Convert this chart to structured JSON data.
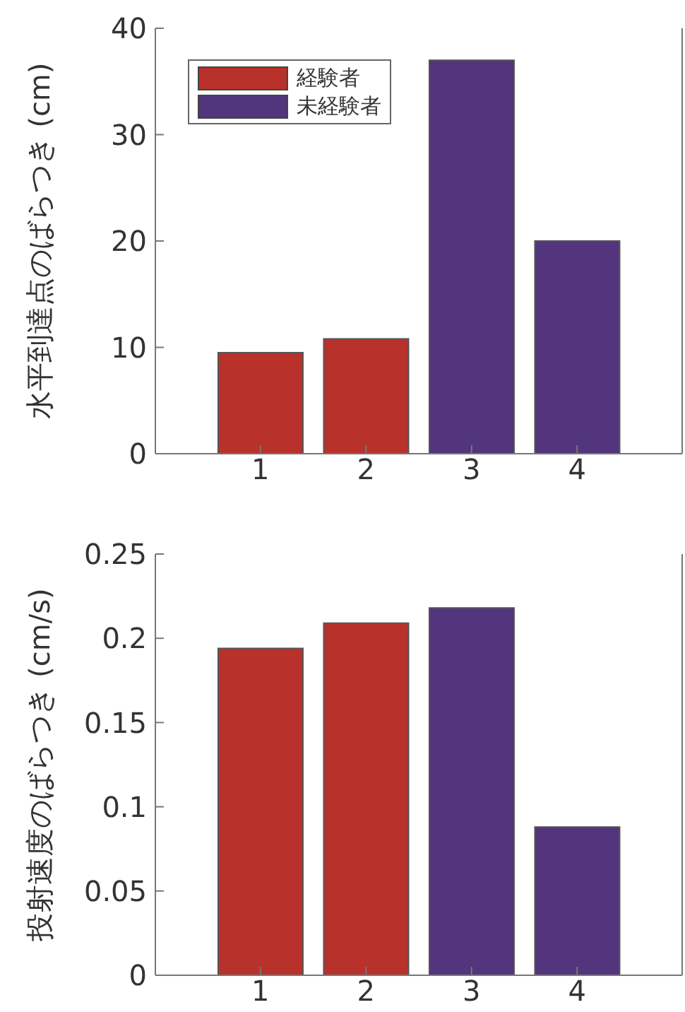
{
  "chart_data": [
    {
      "type": "bar",
      "ylabel": "水平到達点のばらつき (cm)",
      "categories": [
        "1",
        "2",
        "3",
        "4"
      ],
      "stacked": true,
      "series": [
        {
          "name": "経験者",
          "color": "#b8312b",
          "values": [
            9.5,
            10.8,
            null,
            null
          ]
        },
        {
          "name": "未経験者",
          "color": "#52357c",
          "values": [
            null,
            null,
            37.0,
            20.0
          ]
        }
      ],
      "ylim": [
        0,
        40
      ],
      "yticks": [
        0,
        10,
        20,
        30,
        40
      ],
      "grid": false,
      "legend": "top left"
    },
    {
      "type": "bar",
      "ylabel": "投射速度のばらつき (cm/s)",
      "categories": [
        "1",
        "2",
        "3",
        "4"
      ],
      "values": [
        0.194,
        0.209,
        0.218,
        0.088
      ],
      "colors": [
        "#b8312b",
        "#b8312b",
        "#52357c",
        "#52357c"
      ],
      "ylim": [
        0,
        0.25
      ],
      "yticks": [
        0,
        0.05,
        0.1,
        0.15,
        0.2,
        0.25
      ],
      "grid": false,
      "legend": false
    }
  ]
}
